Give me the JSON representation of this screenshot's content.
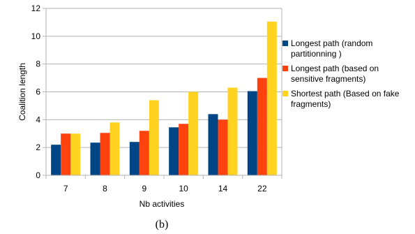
{
  "chart_data": {
    "type": "bar",
    "categories": [
      "7",
      "8",
      "9",
      "10",
      "14",
      "22"
    ],
    "series": [
      {
        "name": "Longest path (random partitionning )",
        "color": "#004586",
        "values": [
          2.2,
          2.35,
          2.4,
          3.45,
          4.4,
          6.05
        ]
      },
      {
        "name": "Longest path (based on sensitive fragments)",
        "color": "#ff420e",
        "values": [
          3.0,
          3.05,
          3.2,
          3.7,
          4.0,
          7.0
        ]
      },
      {
        "name": "Shortest path (Based on fake fragments)",
        "color": "#ffd320",
        "values": [
          3.0,
          3.8,
          5.4,
          6.0,
          6.3,
          11.05
        ]
      }
    ],
    "legend_lines": [
      [
        "Longest path (random",
        "partitionning )"
      ],
      [
        "Longest path (based on",
        "sensitive fragments)"
      ],
      [
        "Shortest path (Based on fake",
        "fragments)"
      ]
    ],
    "xlabel": "Nb activities",
    "ylabel": "Coalition length",
    "ylim": [
      0,
      12
    ],
    "yticks": [
      0,
      2,
      4,
      6,
      8,
      10,
      12
    ],
    "grid": true,
    "legend_position": "right",
    "caption": "(b)"
  }
}
